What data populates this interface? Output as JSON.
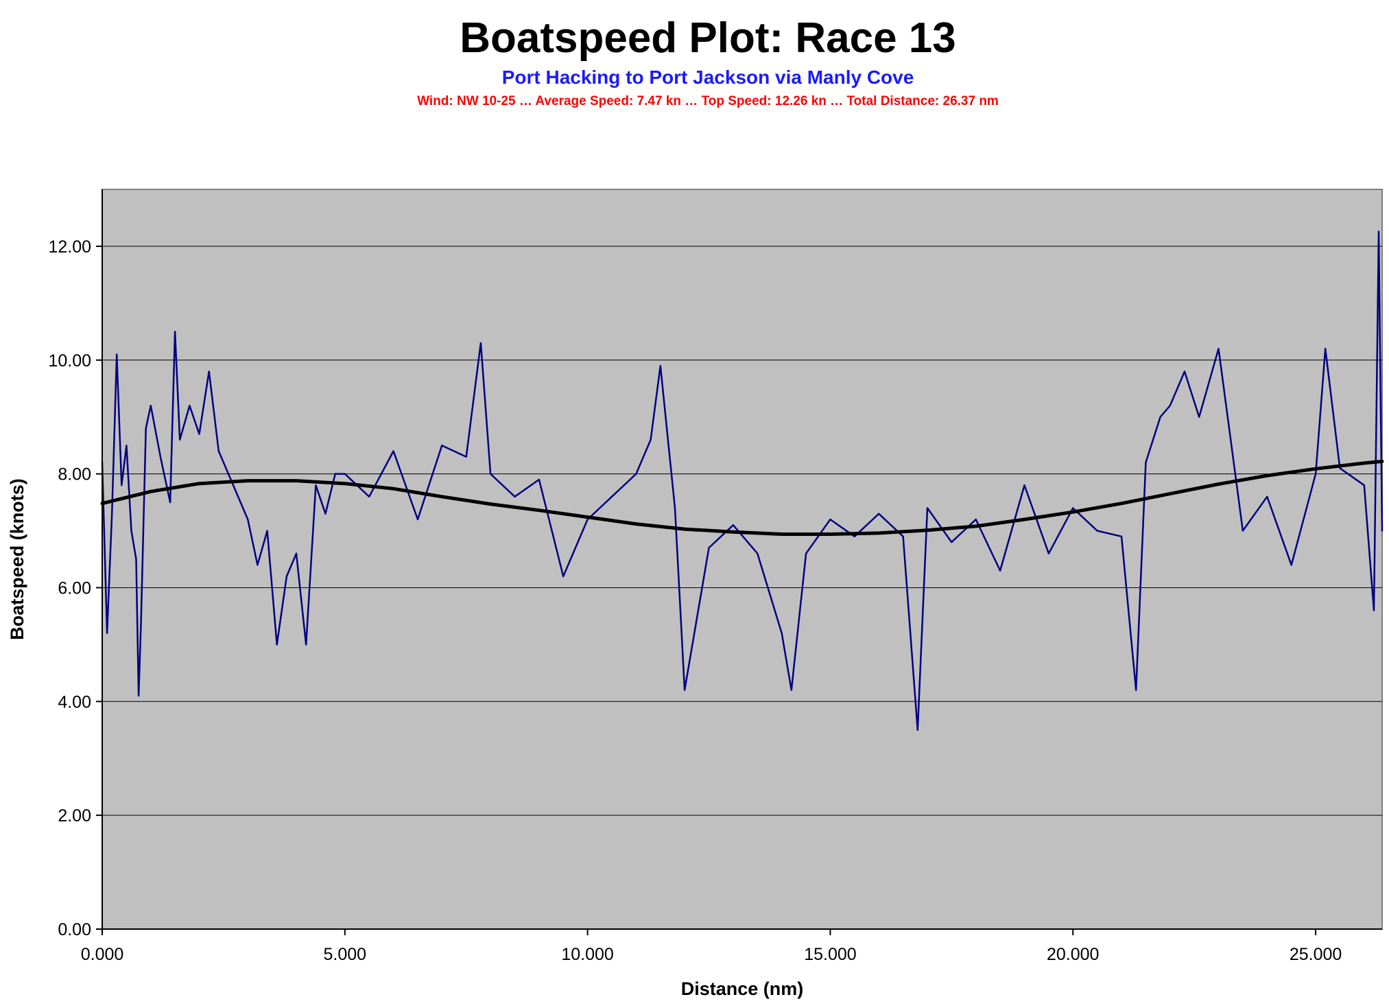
{
  "chart_data": {
    "type": "line",
    "title": "Boatspeed Plot: Race 13",
    "subtitle": "Port Hacking to Port Jackson via Manly Cove",
    "info_line": "Wind: NW 10-25 … Average Speed: 7.47 kn … Top Speed: 12.26 kn … Total Distance: 26.37 nm",
    "xlabel": "Distance (nm)",
    "ylabel": "Boatspeed (knots)",
    "xlim": [
      0,
      26.37
    ],
    "ylim": [
      0,
      13
    ],
    "x_ticks": [
      "0.000",
      "5.000",
      "10.000",
      "15.000",
      "20.000",
      "25.000"
    ],
    "x_tick_values": [
      0,
      5,
      10,
      15,
      20,
      25
    ],
    "y_ticks": [
      "0.00",
      "2.00",
      "4.00",
      "6.00",
      "8.00",
      "10.00",
      "12.00"
    ],
    "y_tick_values": [
      0,
      2,
      4,
      6,
      8,
      10,
      12
    ],
    "grid": "horizontal",
    "colors": {
      "plot_background": "#c0c0c0",
      "raw_series": "#000080",
      "trend_series": "#000000",
      "subtitle": "#1a1aff",
      "info_line": "#ff0000"
    },
    "series": [
      {
        "role": "raw",
        "x": [
          0,
          0.1,
          0.2,
          0.3,
          0.4,
          0.5,
          0.6,
          0.7,
          0.75,
          0.8,
          0.9,
          1.0,
          1.2,
          1.4,
          1.5,
          1.6,
          1.8,
          2.0,
          2.2,
          2.4,
          2.6,
          2.8,
          3.0,
          3.2,
          3.4,
          3.6,
          3.8,
          4.0,
          4.2,
          4.4,
          4.6,
          4.8,
          5.0,
          5.5,
          6.0,
          6.5,
          7.0,
          7.5,
          7.8,
          8.0,
          8.5,
          9.0,
          9.5,
          10.0,
          10.5,
          11.0,
          11.3,
          11.5,
          11.8,
          12.0,
          12.5,
          13.0,
          13.5,
          14.0,
          14.2,
          14.5,
          15.0,
          15.5,
          16.0,
          16.5,
          16.8,
          17.0,
          17.5,
          18.0,
          18.5,
          19.0,
          19.5,
          20.0,
          20.5,
          21.0,
          21.3,
          21.5,
          21.8,
          22.0,
          22.3,
          22.6,
          23.0,
          23.5,
          24.0,
          24.5,
          25.0,
          25.2,
          25.5,
          26.0,
          26.2,
          26.3,
          26.37
        ],
        "y": [
          8.2,
          5.2,
          7.3,
          10.1,
          7.8,
          8.5,
          7.0,
          6.5,
          4.1,
          5.4,
          8.8,
          9.2,
          8.3,
          7.5,
          10.5,
          8.6,
          9.2,
          8.7,
          9.8,
          8.4,
          8.0,
          7.6,
          7.2,
          6.4,
          7.0,
          5.0,
          6.2,
          6.6,
          5.0,
          7.8,
          7.3,
          8.0,
          8.0,
          7.6,
          8.4,
          7.2,
          8.5,
          8.3,
          10.3,
          8.0,
          7.6,
          7.9,
          6.2,
          7.2,
          7.6,
          8.0,
          8.6,
          9.9,
          7.4,
          4.2,
          6.7,
          7.1,
          6.6,
          5.2,
          4.2,
          6.6,
          7.2,
          6.9,
          7.3,
          6.9,
          3.5,
          7.4,
          6.8,
          7.2,
          6.3,
          7.8,
          6.6,
          7.4,
          7.0,
          6.9,
          4.2,
          8.2,
          9.0,
          9.2,
          9.8,
          9.0,
          10.2,
          7.0,
          7.6,
          6.4,
          8.0,
          10.2,
          8.1,
          7.8,
          5.6,
          12.26,
          7.0
        ]
      },
      {
        "role": "trend",
        "x": [
          0,
          1,
          2,
          3,
          4,
          5,
          6,
          7,
          8,
          9,
          10,
          11,
          12,
          13,
          14,
          15,
          16,
          17,
          18,
          19,
          20,
          21,
          22,
          23,
          24,
          25,
          26,
          26.37
        ],
        "y": [
          7.48,
          7.69,
          7.83,
          7.88,
          7.88,
          7.83,
          7.74,
          7.6,
          7.47,
          7.36,
          7.24,
          7.12,
          7.03,
          6.98,
          6.94,
          6.94,
          6.96,
          7.01,
          7.08,
          7.2,
          7.33,
          7.48,
          7.65,
          7.82,
          7.97,
          8.09,
          8.19,
          8.22
        ]
      }
    ]
  }
}
